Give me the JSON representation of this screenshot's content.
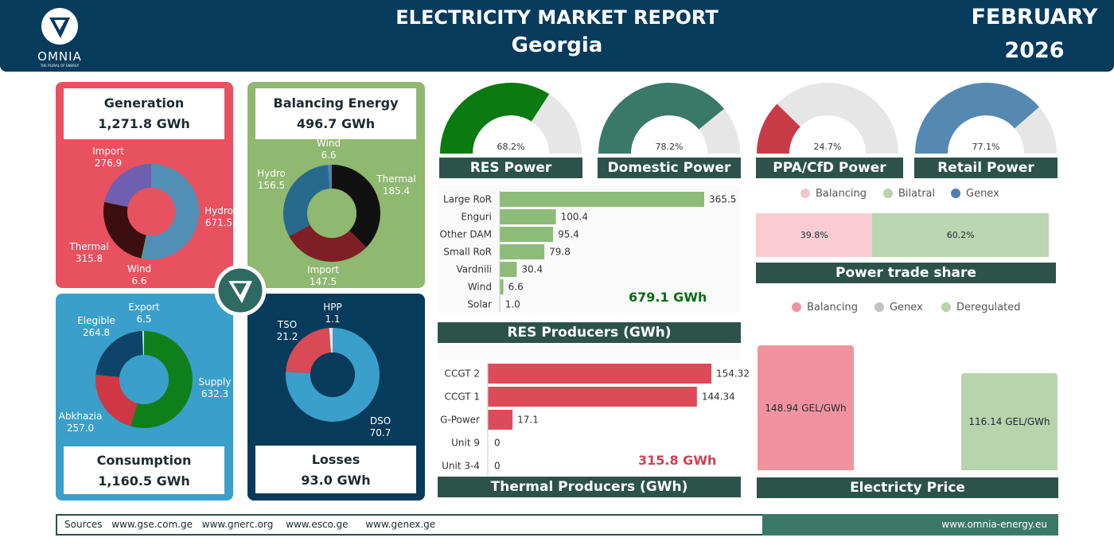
{
  "header": {
    "logo_text": "OMNIA",
    "logo_tagline": "THE PLURAL OF ENERGY",
    "title": "ELECTRICITY MARKET REPORT",
    "country": "Georgia",
    "month": "FEBRUARY",
    "year": "2026"
  },
  "colors": {
    "generation": "#e8515f",
    "balancing": "#8fb870",
    "consumption": "#3a9fca",
    "losses": "#073b5c",
    "res_bar": "#8dbb78",
    "thermal_bar": "#dd4b58",
    "title_bar": "#2c5249",
    "header": "#073b5c"
  },
  "generation": {
    "title": "Generation",
    "total": "1,271.8 GWh",
    "slices": [
      {
        "name": "Hydro",
        "value": "671.5",
        "color": "#528fb6"
      },
      {
        "name": "Wind",
        "value": "6.6",
        "color": "#56a07e"
      },
      {
        "name": "Thermal",
        "value": "315.8",
        "color": "#3b0f0f"
      },
      {
        "name": "Import",
        "value": "276.9",
        "color": "#6f5fb0"
      }
    ]
  },
  "balancing": {
    "title": "Balancing Energy",
    "total": "496.7 GWh",
    "slices": [
      {
        "name": "Thermal",
        "value": "185.4",
        "color": "#111111"
      },
      {
        "name": "Import",
        "value": "147.5",
        "color": "#7d1f25"
      },
      {
        "name": "Hydro",
        "value": "156.5",
        "color": "#286a8e"
      },
      {
        "name": "Wind",
        "value": "6.6",
        "color": "#4f81b5"
      }
    ]
  },
  "consumption": {
    "title": "Consumption",
    "total": "1,160.5 GWh",
    "slices": [
      {
        "name": "Supply",
        "value": "632.3",
        "color": "#0f7f1c"
      },
      {
        "name": "Abkhazia",
        "value": "257.0",
        "color": "#cf3744"
      },
      {
        "name": "Elegible",
        "value": "264.8",
        "color": "#0e4469"
      },
      {
        "name": "Export",
        "value": "6.5",
        "color": "#bfe3ef"
      }
    ]
  },
  "losses": {
    "title": "Losses",
    "total": "93.0 GWh",
    "slices": [
      {
        "name": "DSO",
        "value": "70.7",
        "color": "#3a9fca"
      },
      {
        "name": "TSO",
        "value": "21.2",
        "color": "#d84a55"
      },
      {
        "name": "HPP",
        "value": "1.1",
        "color": "#e7e7e7"
      }
    ]
  },
  "gauges": [
    {
      "title": "RES Power",
      "pct": 68.2,
      "label": "68.2%",
      "color": "#0b7a10"
    },
    {
      "title": "Domestic Power",
      "pct": 78.2,
      "label": "78.2%",
      "color": "#3a7868"
    },
    {
      "title": "PPA/CfD Power",
      "pct": 24.7,
      "label": "24.7%",
      "color": "#c73a46"
    },
    {
      "title": "Retail Power",
      "pct": 77.1,
      "label": "77.1%",
      "color": "#5589b2"
    }
  ],
  "chart_data": [
    {
      "type": "bar",
      "title": "RES Producers (GWh)",
      "categories": [
        "Large RoR",
        "Enguri",
        "Other DAM",
        "Small RoR",
        "Vardnili",
        "Wind",
        "Solar"
      ],
      "values": [
        365.5,
        100.4,
        95.4,
        79.8,
        30.4,
        6.6,
        1.0
      ],
      "labels": [
        "365.5",
        "100.4",
        "95.4",
        "79.8",
        "30.4",
        "6.6",
        "1.0"
      ],
      "total": "679.1 GWh",
      "xlim": [
        0,
        365.5
      ]
    },
    {
      "type": "bar",
      "title": "Thermal Producers (GWh)",
      "categories": [
        "CCGT 2",
        "CCGT 1",
        "G-Power",
        "Unit 9",
        "Unit 3-4"
      ],
      "values": [
        154.32,
        144.34,
        17.1,
        0,
        0
      ],
      "labels": [
        "154.32",
        "144.34",
        "17.1",
        "0",
        "0"
      ],
      "total": "315.8 GWh",
      "xlim": [
        0,
        154.32
      ]
    },
    {
      "type": "bar",
      "title": "Power trade share",
      "stacked": true,
      "legend": [
        "Balancing",
        "Bilatral",
        "Genex"
      ],
      "series": [
        {
          "name": "Balancing",
          "value": 39.8,
          "label": "39.8%",
          "color": "#f8ccd2"
        },
        {
          "name": "Bilatral",
          "value": 60.2,
          "label": "60.2%",
          "color": "#b9d6b0"
        }
      ],
      "legend_colors": [
        "#f6c5cb",
        "#b7d4ad",
        "#4d7fae"
      ]
    },
    {
      "type": "bar",
      "title": "Electricty Price",
      "legend": [
        "Balancing",
        "Genex",
        "Deregulated"
      ],
      "legend_colors": [
        "#f1939e",
        "#c2c2c2",
        "#b7d4ad"
      ],
      "categories": [
        "Balancing",
        "Deregulated"
      ],
      "values": [
        148.94,
        116.14
      ],
      "labels": [
        "148.94 GEL/GWh",
        "116.14 GEL/GWh"
      ],
      "colors": [
        "#f1939e",
        "#b7d4ad"
      ],
      "ylim": [
        0,
        148.94
      ]
    }
  ],
  "footer": {
    "sources_label": "Sources",
    "sources": [
      "www.gse.com.ge",
      "www.gnerc.org",
      "www.esco.ge",
      "www.genex.ge"
    ],
    "website": "www.omnia-energy.eu"
  }
}
